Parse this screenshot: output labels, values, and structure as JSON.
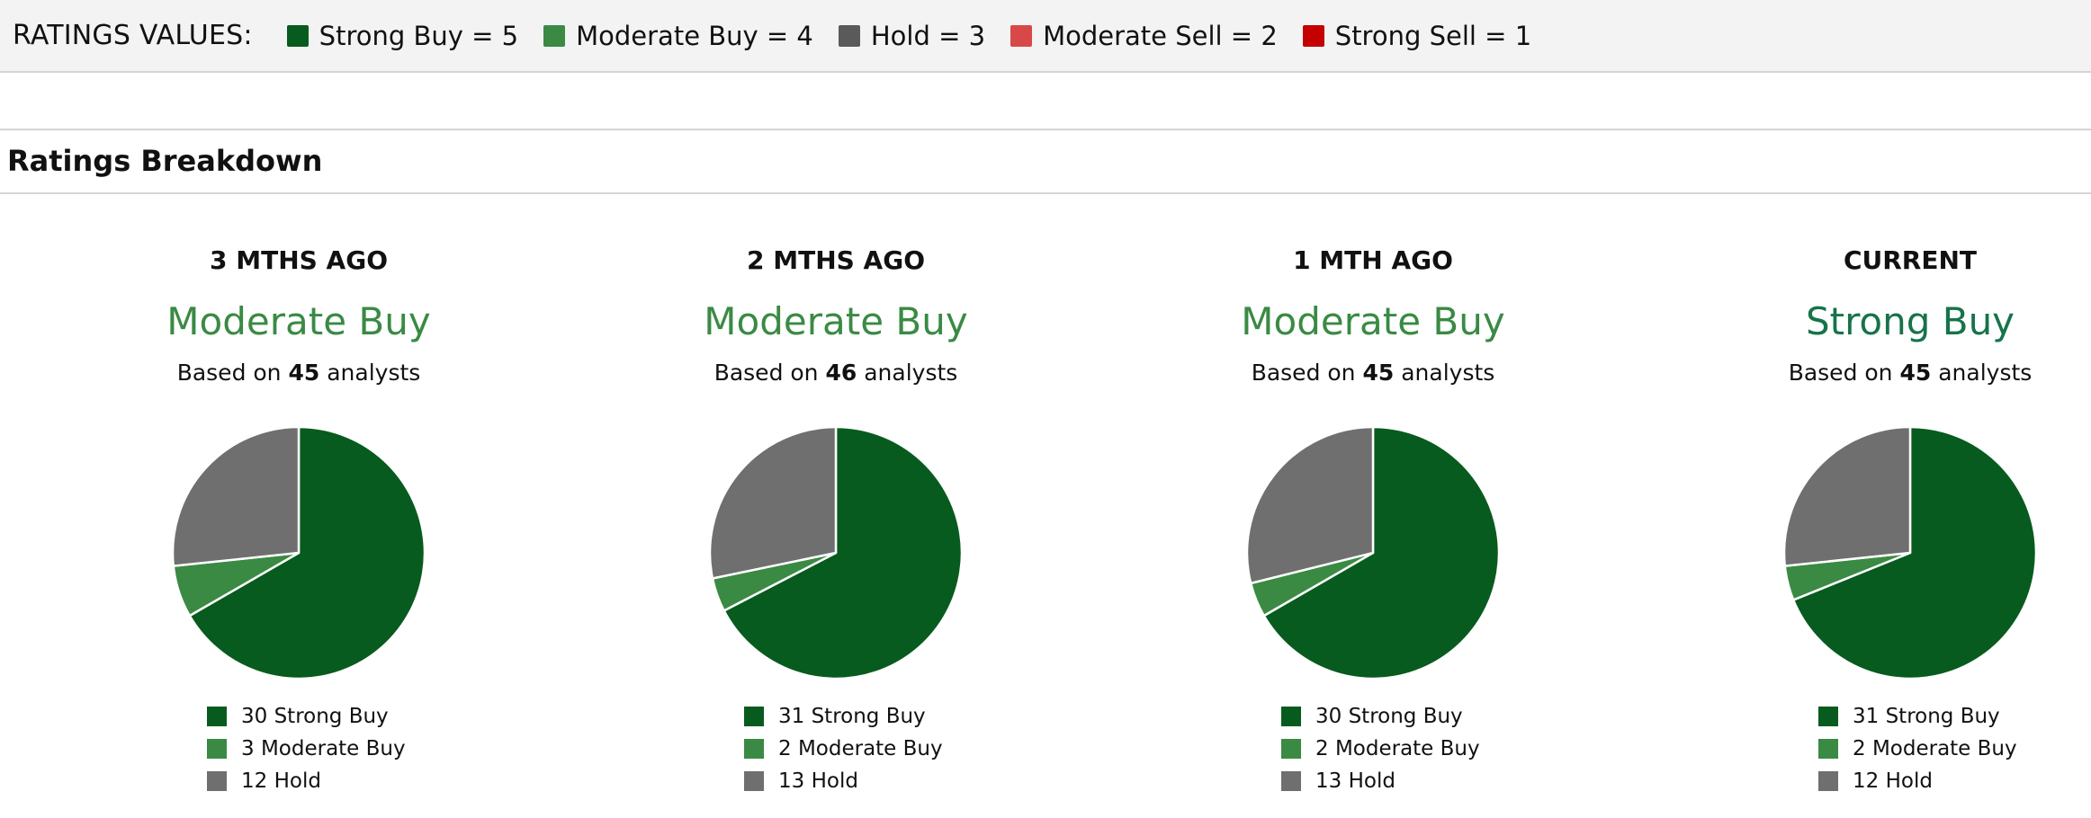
{
  "ratings_bar": {
    "title": "RATINGS VALUES:",
    "items": [
      {
        "label": "Strong Buy = 5",
        "color": "#075b1e"
      },
      {
        "label": "Moderate Buy = 4",
        "color": "#3a8a44"
      },
      {
        "label": "Hold = 3",
        "color": "#5a5a5a"
      },
      {
        "label": "Moderate Sell = 2",
        "color": "#d94848"
      },
      {
        "label": "Strong Sell = 1",
        "color": "#c40000"
      }
    ]
  },
  "section": {
    "title": "Ratings Breakdown"
  },
  "colors": {
    "strong_buy": "#075b1e",
    "moderate_buy": "#3a8a44",
    "hold": "#6f6f6f",
    "consensus_moderate": "#3a8a44",
    "consensus_strong": "#17734a"
  },
  "chart_data": [
    {
      "type": "pie",
      "title": "3 MTHS AGO",
      "consensus": "Moderate Buy",
      "based_prefix": "Based on",
      "analysts": "45",
      "based_suffix": "analysts",
      "slices": [
        {
          "label": "Strong Buy",
          "value": 30
        },
        {
          "label": "Moderate Buy",
          "value": 3
        },
        {
          "label": "Hold",
          "value": 12
        }
      ],
      "legend": [
        "30 Strong Buy",
        "3 Moderate Buy",
        "12 Hold"
      ]
    },
    {
      "type": "pie",
      "title": "2 MTHS AGO",
      "consensus": "Moderate Buy",
      "based_prefix": "Based on",
      "analysts": "46",
      "based_suffix": "analysts",
      "slices": [
        {
          "label": "Strong Buy",
          "value": 31
        },
        {
          "label": "Moderate Buy",
          "value": 2
        },
        {
          "label": "Hold",
          "value": 13
        }
      ],
      "legend": [
        "31 Strong Buy",
        "2 Moderate Buy",
        "13 Hold"
      ]
    },
    {
      "type": "pie",
      "title": "1 MTH AGO",
      "consensus": "Moderate Buy",
      "based_prefix": "Based on",
      "analysts": "45",
      "based_suffix": "analysts",
      "slices": [
        {
          "label": "Strong Buy",
          "value": 30
        },
        {
          "label": "Moderate Buy",
          "value": 2
        },
        {
          "label": "Hold",
          "value": 13
        }
      ],
      "legend": [
        "30 Strong Buy",
        "2 Moderate Buy",
        "13 Hold"
      ]
    },
    {
      "type": "pie",
      "title": "CURRENT",
      "consensus": "Strong Buy",
      "based_prefix": "Based on",
      "analysts": "45",
      "based_suffix": "analysts",
      "slices": [
        {
          "label": "Strong Buy",
          "value": 31
        },
        {
          "label": "Moderate Buy",
          "value": 2
        },
        {
          "label": "Hold",
          "value": 12
        }
      ],
      "legend": [
        "31 Strong Buy",
        "2 Moderate Buy",
        "12 Hold"
      ]
    }
  ]
}
